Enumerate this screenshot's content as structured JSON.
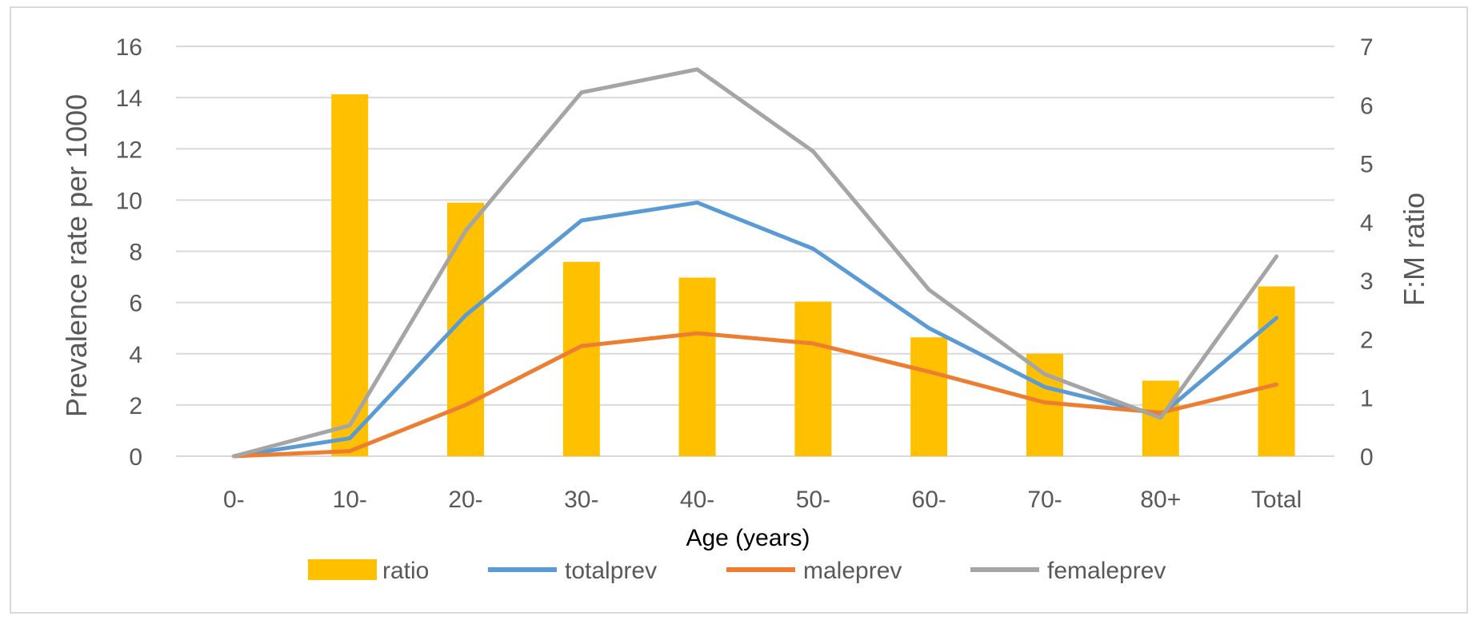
{
  "chart_data": {
    "type": "bar+line",
    "categories": [
      "0-",
      "10-",
      "20-",
      "30-",
      "40-",
      "50-",
      "60-",
      "70-",
      "80+",
      "Total"
    ],
    "xlabel": "Age (years)",
    "ylabel_left": "Prevalence rate per 1000",
    "ylabel_right": "F:M ratio",
    "ylim_left": [
      0,
      16
    ],
    "yticks_left": [
      "0",
      "2",
      "4",
      "6",
      "8",
      "10",
      "12",
      "14",
      "16"
    ],
    "ylim_right": [
      0,
      7
    ],
    "yticks_right": [
      "0",
      "1",
      "2",
      "3",
      "4",
      "5",
      "6",
      "7"
    ],
    "grid": true,
    "legend_position": "bottom",
    "series": [
      {
        "name": "ratio",
        "type": "bar",
        "axis": "right",
        "color": "#FFC000",
        "values": [
          0,
          6.18,
          4.33,
          3.32,
          3.05,
          2.64,
          2.03,
          1.75,
          1.29,
          2.9
        ]
      },
      {
        "name": "totalprev",
        "type": "line",
        "axis": "left",
        "color": "#5B9BD5",
        "values": [
          0,
          0.7,
          5.5,
          9.2,
          9.9,
          8.1,
          5.0,
          2.7,
          1.6,
          5.4
        ]
      },
      {
        "name": "maleprev",
        "type": "line",
        "axis": "left",
        "color": "#ED7D31",
        "values": [
          0,
          0.2,
          2.0,
          4.3,
          4.8,
          4.4,
          3.3,
          2.1,
          1.7,
          2.8
        ]
      },
      {
        "name": "femaleprev",
        "type": "line",
        "axis": "left",
        "color": "#A5A5A5",
        "values": [
          0,
          1.2,
          8.8,
          14.2,
          15.1,
          11.9,
          6.5,
          3.2,
          1.5,
          7.8
        ]
      }
    ]
  }
}
